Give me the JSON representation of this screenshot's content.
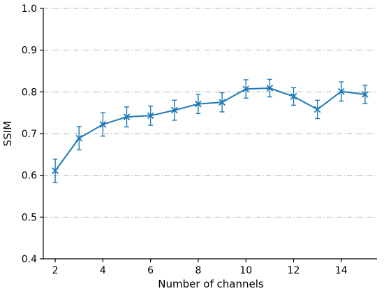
{
  "chart_data": {
    "type": "line",
    "xlabel": "Number of channels",
    "ylabel": "SSIM",
    "xlim": [
      1.5,
      15.5
    ],
    "ylim": [
      0.4,
      1.0
    ],
    "x_ticks": [
      2,
      4,
      6,
      8,
      10,
      12,
      14
    ],
    "y_ticks": [
      0.4,
      0.5,
      0.6,
      0.7,
      0.8,
      0.9,
      1.0
    ],
    "x_tick_labels": [
      "2",
      "4",
      "6",
      "8",
      "10",
      "12",
      "14"
    ],
    "y_tick_labels": [
      "0.4",
      "0.5",
      "0.6",
      "0.7",
      "0.8",
      "0.9",
      "1.0"
    ],
    "grid": "horizontal dash-dot",
    "colors": {
      "series": "#1f7ab5",
      "grid": "#b0b0b0",
      "axis": "#000000"
    },
    "series": [
      {
        "marker": "x",
        "x": [
          2,
          3,
          4,
          5,
          6,
          7,
          8,
          9,
          10,
          11,
          12,
          13,
          14,
          15
        ],
        "y": [
          0.611,
          0.689,
          0.722,
          0.74,
          0.743,
          0.756,
          0.771,
          0.775,
          0.807,
          0.809,
          0.789,
          0.758,
          0.801,
          0.794
        ],
        "yerr": [
          0.028,
          0.028,
          0.028,
          0.024,
          0.023,
          0.024,
          0.023,
          0.023,
          0.022,
          0.021,
          0.021,
          0.022,
          0.023,
          0.022
        ]
      }
    ]
  }
}
